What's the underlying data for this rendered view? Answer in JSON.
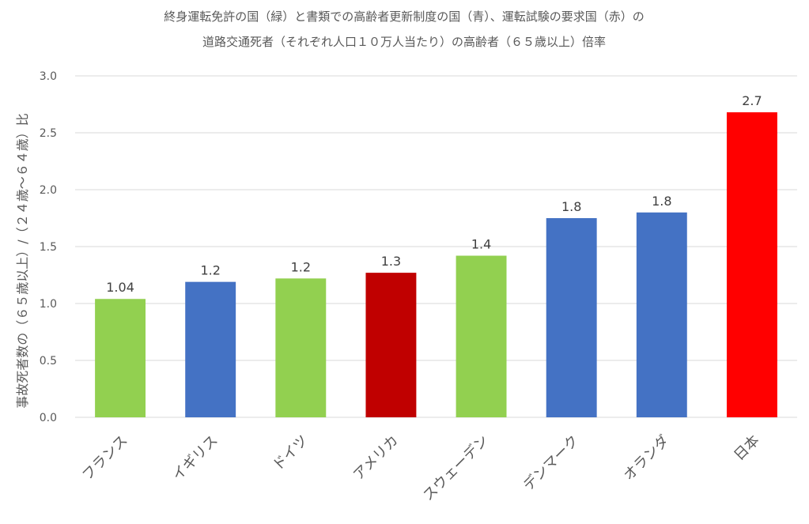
{
  "chart_data": {
    "type": "bar",
    "title": [
      "終身運転免許の国（緑）と書類での高齢者更新制度の国（青）、運転試験の要求国（赤）の",
      "道路交通死者（それぞれ人口１０万人当たり）の高齢者（６５歳以上）倍率"
    ],
    "xlabel": "",
    "ylabel": "事故死者数の（６５歳以上）/（２４歳～６４歳）比",
    "ylim": [
      0,
      3.0
    ],
    "yticks": [
      "0.0",
      "0.5",
      "1.0",
      "1.5",
      "2.0",
      "2.5",
      "3.0"
    ],
    "grid": true,
    "categories": [
      "フランス",
      "イギリス",
      "ドイツ",
      "アメリカ",
      "スウェーデン",
      "デンマーク",
      "オランダ",
      "日本"
    ],
    "values": [
      1.04,
      1.19,
      1.22,
      1.27,
      1.42,
      1.75,
      1.8,
      2.68
    ],
    "data_labels": [
      "1.04",
      "1.2",
      "1.2",
      "1.3",
      "1.4",
      "1.8",
      "1.8",
      "2.7"
    ],
    "colors": [
      "#92d050",
      "#4472c4",
      "#92d050",
      "#c00000",
      "#92d050",
      "#4472c4",
      "#4472c4",
      "#ff0000"
    ]
  }
}
